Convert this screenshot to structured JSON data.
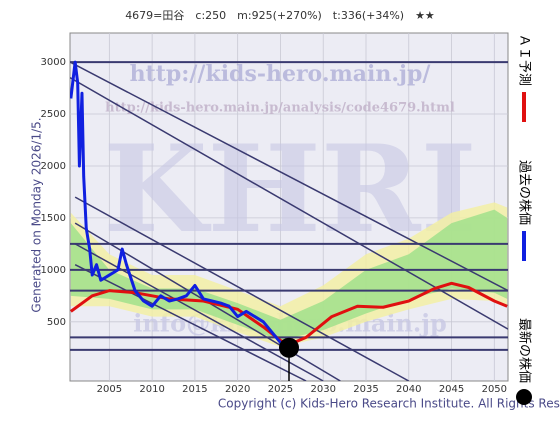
{
  "chart_data": {
    "type": "line",
    "title": "4679=田谷　c:250　m:925(+270%)　t:336(+34%)　★★",
    "side_note": "Generated on Monday 2026/1/5.",
    "footer": "Copyright (c) Kids-Hero Research Institute. All Rights Reserved.",
    "watermarks": [
      "http://kids-hero.main.jp/",
      "http://kids-hero.main.jp/analysis/code4679.html",
      "KHRI",
      "info@kids-hero.main.jp"
    ],
    "xlim": [
      2000.4,
      2051.6
    ],
    "ylim": [
      -70,
      3280
    ],
    "xticks": [
      2005,
      2010,
      2015,
      2020,
      2025,
      2030,
      2035,
      2040,
      2045,
      2050
    ],
    "yticks": [
      500,
      1000,
      1500,
      2000,
      2500,
      3000
    ],
    "grid": true,
    "bands": [
      {
        "color": "#f4f0a0",
        "x": [
          2000.5,
          2005,
          2010,
          2015,
          2020,
          2025,
          2030,
          2035,
          2040,
          2045,
          2050,
          2051.5
        ],
        "upper": [
          1550,
          1150,
          950,
          950,
          800,
          650,
          850,
          1150,
          1300,
          1550,
          1650,
          1600
        ],
        "lower": [
          650,
          650,
          550,
          550,
          400,
          260,
          350,
          500,
          620,
          720,
          700,
          650
        ]
      },
      {
        "color": "#9be08a",
        "x": [
          2000.5,
          2005,
          2010,
          2015,
          2020,
          2025,
          2030,
          2035,
          2040,
          2045,
          2050,
          2051.5
        ],
        "upper": [
          1450,
          1000,
          820,
          820,
          680,
          520,
          700,
          1000,
          1150,
          1450,
          1580,
          1500
        ],
        "lower": [
          750,
          720,
          620,
          620,
          470,
          320,
          420,
          580,
          720,
          820,
          780,
          720
        ]
      }
    ],
    "hlines": [
      3000,
      1250,
      1000,
      800,
      350,
      230
    ],
    "hline_color": "#3a3a70",
    "trendlines": [
      {
        "x": [
          2000.4,
          2051.6
        ],
        "y": [
          3000,
          800
        ]
      },
      {
        "x": [
          2000.4,
          2051.6
        ],
        "y": [
          2850,
          430
        ]
      },
      {
        "x": [
          2001,
          2032
        ],
        "y": [
          1450,
          -70
        ]
      },
      {
        "x": [
          2001,
          2030
        ],
        "y": [
          1250,
          -70
        ]
      },
      {
        "x": [
          2001,
          2028
        ],
        "y": [
          1050,
          -70
        ]
      },
      {
        "x": [
          2001,
          2040
        ],
        "y": [
          1700,
          -70
        ]
      }
    ],
    "series": [
      {
        "name": "ＡＩ予測",
        "color": "#e01010",
        "x": [
          2000.5,
          2003,
          2005,
          2008,
          2012,
          2016,
          2020,
          2023,
          2025,
          2026,
          2028,
          2031,
          2034,
          2037,
          2040,
          2043,
          2045,
          2047,
          2050,
          2051.5
        ],
        "values": [
          600,
          750,
          800,
          780,
          720,
          700,
          620,
          450,
          320,
          280,
          350,
          550,
          650,
          640,
          700,
          820,
          870,
          830,
          700,
          650
        ]
      },
      {
        "name": "過去の株価",
        "color": "#1020e0",
        "x": [
          2000.5,
          2001,
          2001.3,
          2001.5,
          2001.8,
          2002,
          2002.3,
          2002.7,
          2003,
          2003.5,
          2004,
          2005,
          2006,
          2006.5,
          2007,
          2008,
          2009,
          2010,
          2011,
          2012,
          2013,
          2014,
          2015,
          2016,
          2017,
          2018,
          2019,
          2020,
          2021,
          2022,
          2023,
          2024,
          2025,
          2025.7
        ],
        "values": [
          2650,
          3000,
          2800,
          2000,
          2700,
          1900,
          1400,
          1200,
          950,
          1050,
          900,
          950,
          1000,
          1200,
          1050,
          800,
          700,
          650,
          750,
          700,
          720,
          750,
          850,
          720,
          700,
          680,
          650,
          550,
          600,
          550,
          500,
          400,
          300,
          250
        ]
      }
    ],
    "latest": {
      "name": "最新の株価",
      "color": "#000000",
      "x": 2026,
      "y": 250
    }
  }
}
